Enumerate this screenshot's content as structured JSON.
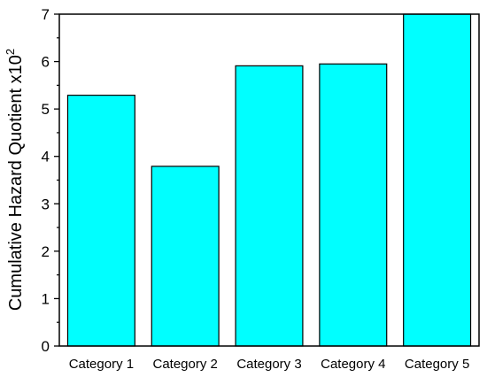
{
  "chart_data": {
    "type": "bar",
    "categories": [
      "Category 1",
      "Category 2",
      "Category 3",
      "Category 4",
      "Category 5"
    ],
    "values": [
      5.29,
      3.79,
      5.91,
      5.95,
      7.0
    ],
    "xlabel": "",
    "ylabel": "Cumulative Hazard Quotient x10",
    "ylabel_superscript": "2",
    "ylim": [
      0,
      7
    ],
    "yticks": [
      0,
      1,
      2,
      3,
      4,
      5,
      6,
      7
    ],
    "grid": false,
    "bar_color": "#00FFFF",
    "edge_color": "#000000"
  }
}
